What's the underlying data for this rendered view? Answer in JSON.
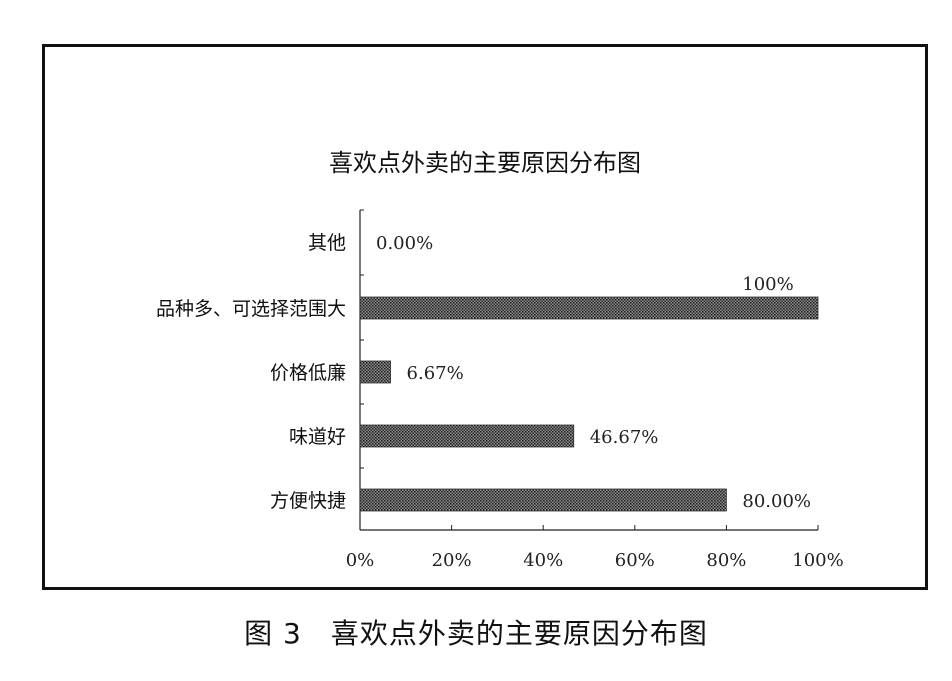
{
  "figure_caption": "图 3　喜欢点外卖的主要原因分布图",
  "chart_data": {
    "type": "bar",
    "orientation": "horizontal",
    "title": "喜欢点外卖的主要原因分布图",
    "categories": [
      "其他",
      "品种多、可选择范围大",
      "价格低廉",
      "味道好",
      "方便快捷"
    ],
    "values": [
      0,
      100,
      6.67,
      46.67,
      80
    ],
    "value_labels": [
      "0.00%",
      "100%",
      "6.67%",
      "46.67%",
      "80.00%"
    ],
    "xlim": [
      0,
      100
    ],
    "x_ticks": [
      0,
      20,
      40,
      60,
      80,
      100
    ],
    "x_tick_labels": [
      "0%",
      "20%",
      "40%",
      "60%",
      "80%",
      "100%"
    ],
    "grid": false,
    "bar_color": "#555555"
  }
}
